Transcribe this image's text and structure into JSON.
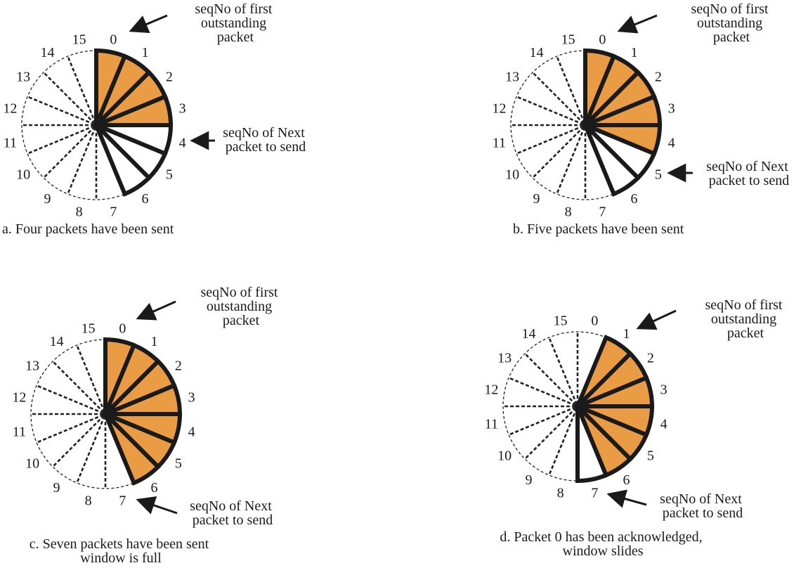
{
  "colors": {
    "filled": "#EA9C45",
    "outline": "#1a1a1a",
    "dashed": "#222222",
    "background": "#ffffff"
  },
  "sequence_numbers": [
    "0",
    "1",
    "2",
    "3",
    "4",
    "5",
    "6",
    "7",
    "8",
    "9",
    "10",
    "11",
    "12",
    "13",
    "14",
    "15"
  ],
  "panels": [
    {
      "id": "a",
      "caption": [
        "a. Four packets have been sent"
      ],
      "window": [
        0,
        1,
        2,
        3,
        4,
        5,
        6
      ],
      "sent_outstanding": [
        0,
        1,
        2,
        3
      ],
      "first_label": [
        "seqNo of  first",
        "outstanding",
        "packet"
      ],
      "next_label": [
        "seqNo of Next",
        "packet to send"
      ]
    },
    {
      "id": "b",
      "caption": [
        "b. Five packets have been sent"
      ],
      "window": [
        0,
        1,
        2,
        3,
        4,
        5,
        6
      ],
      "sent_outstanding": [
        0,
        1,
        2,
        3,
        4
      ],
      "first_label": [
        "seqNo of  first",
        "outstanding",
        "packet"
      ],
      "next_label": [
        "seqNo of Next",
        "packet to send"
      ]
    },
    {
      "id": "c",
      "caption": [
        "c. Seven packets have been sent",
        "window is full"
      ],
      "window": [
        0,
        1,
        2,
        3,
        4,
        5,
        6
      ],
      "sent_outstanding": [
        0,
        1,
        2,
        3,
        4,
        5,
        6
      ],
      "first_label": [
        "seqNo of  first",
        "outstanding",
        "packet"
      ],
      "next_label": [
        "seqNo of Next",
        "packet to send"
      ]
    },
    {
      "id": "d",
      "caption": [
        "d. Packet 0 has been acknowledged,",
        "window slides"
      ],
      "window": [
        1,
        2,
        3,
        4,
        5,
        6,
        7
      ],
      "sent_outstanding": [
        1,
        2,
        3,
        4,
        5,
        6
      ],
      "first_label": [
        "seqNo of  first",
        "outstanding",
        "packet"
      ],
      "next_label": [
        "seqNo of Next",
        "packet to send"
      ]
    }
  ]
}
